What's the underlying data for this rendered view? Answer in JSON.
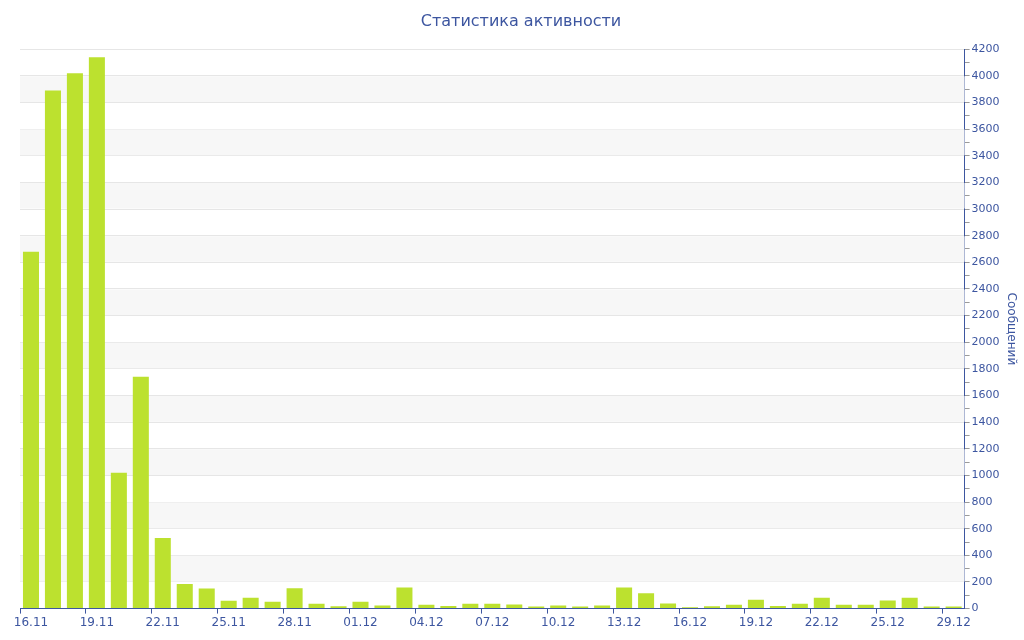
{
  "chart_data": {
    "type": "bar",
    "title": "Статистика активности",
    "ylabel": "Сообщений",
    "categories": [
      "16.11",
      null,
      null,
      "19.11",
      null,
      null,
      "22.11",
      null,
      null,
      "25.11",
      null,
      null,
      "28.11",
      null,
      null,
      "01.12",
      null,
      null,
      "04.12",
      null,
      null,
      "07.12",
      null,
      null,
      "10.12",
      null,
      null,
      "13.12",
      null,
      null,
      "16.12",
      null,
      null,
      "19.12",
      null,
      null,
      "22.12",
      null,
      null,
      "25.12",
      null,
      null,
      "29.12"
    ],
    "values": [
      2680,
      3890,
      4020,
      4140,
      1020,
      1740,
      530,
      185,
      150,
      59,
      82,
      51,
      153,
      36,
      18,
      51,
      23,
      158,
      28,
      20,
      36,
      36,
      31,
      15,
      23,
      15,
      23,
      158,
      115,
      38,
      10,
      18,
      28,
      66,
      20,
      36,
      82,
      28,
      28,
      61,
      82,
      15,
      15
    ],
    "color": "#bce12f",
    "ylim": [
      0,
      4200
    ],
    "yticks": [
      0,
      {
        "value": 100,
        "label": null
      },
      200,
      {
        "value": 300,
        "label": null
      },
      400,
      {
        "value": 500,
        "label": null
      },
      600,
      {
        "value": 700,
        "label": null
      },
      800,
      {
        "value": 900,
        "label": null
      },
      1000,
      {
        "value": 1100,
        "label": null
      },
      1200,
      {
        "value": 1300,
        "label": null
      },
      1400,
      {
        "value": 1500,
        "label": null
      },
      1600,
      {
        "value": 1700,
        "label": null
      },
      1800,
      {
        "value": 1900,
        "label": null
      },
      2000,
      {
        "value": 2100,
        "label": null
      },
      2200,
      {
        "value": 2300,
        "label": null
      },
      2400,
      {
        "value": 2500,
        "label": null
      },
      2600,
      {
        "value": 2700,
        "label": null
      },
      2800,
      {
        "value": 2900,
        "label": null
      },
      3000,
      {
        "value": 3100,
        "label": null
      },
      3200,
      {
        "value": 3300,
        "label": null
      },
      3400,
      {
        "value": 3500,
        "label": null
      },
      3600,
      {
        "value": 3700,
        "label": null
      },
      3800,
      {
        "value": 3900,
        "label": null
      },
      4000,
      {
        "value": 4100,
        "label": null
      },
      4200
    ],
    "grid": "y"
  }
}
